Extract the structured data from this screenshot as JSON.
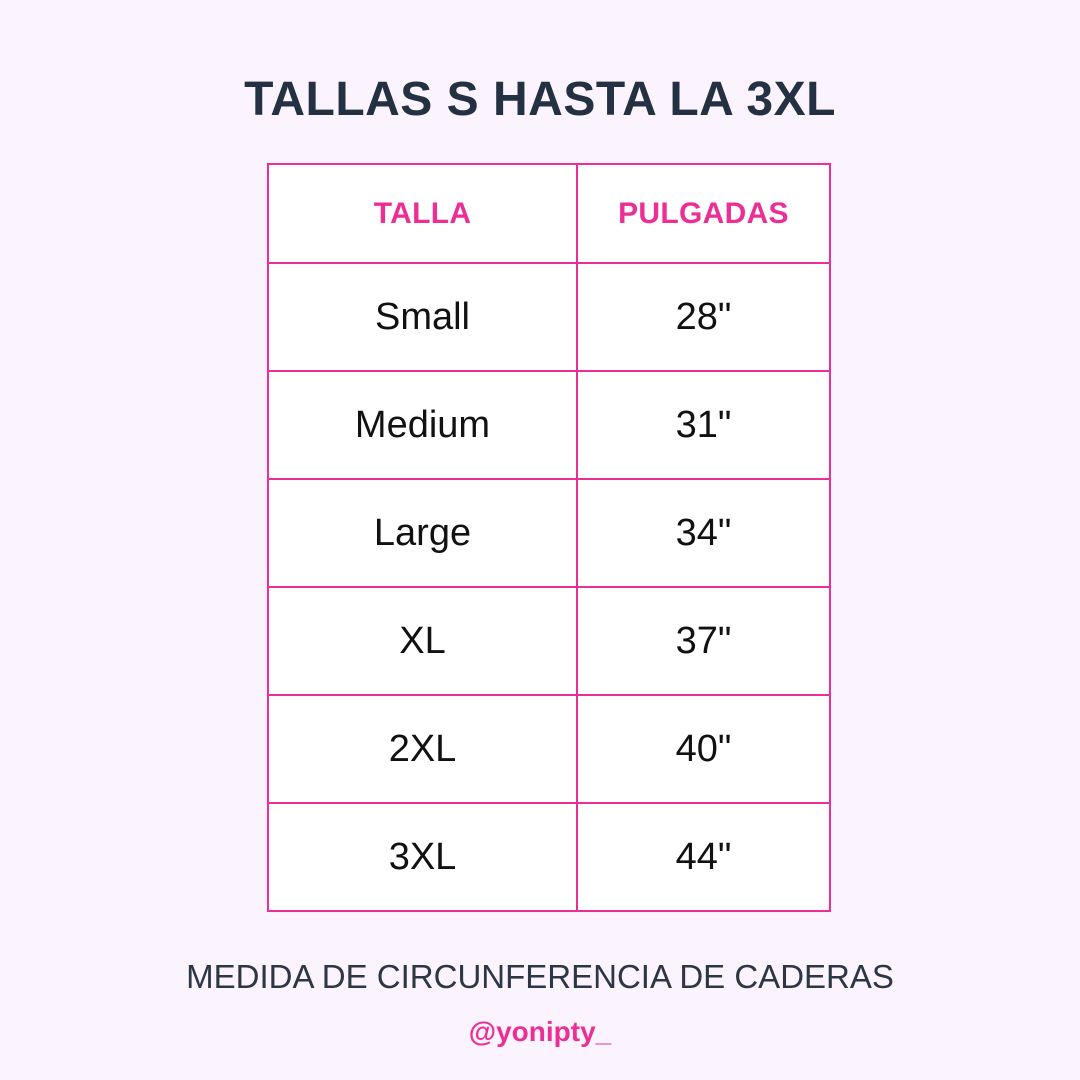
{
  "title": "TALLAS S HASTA LA 3XL",
  "table": {
    "headers": [
      "TALLA",
      "PULGADAS"
    ],
    "rows": [
      [
        "Small",
        "28\""
      ],
      [
        "Medium",
        "31\""
      ],
      [
        "Large",
        "34\""
      ],
      [
        "XL",
        "37\""
      ],
      [
        "2XL",
        "40\""
      ],
      [
        "3XL",
        "44\""
      ]
    ]
  },
  "caption": "MEDIDA DE CIRCUNFERENCIA DE CADERAS",
  "handle": "@yonipty_",
  "colors": {
    "background": "#fbf3fd",
    "accent": "#ec2e96",
    "title": "#233142",
    "text": "#111111"
  }
}
